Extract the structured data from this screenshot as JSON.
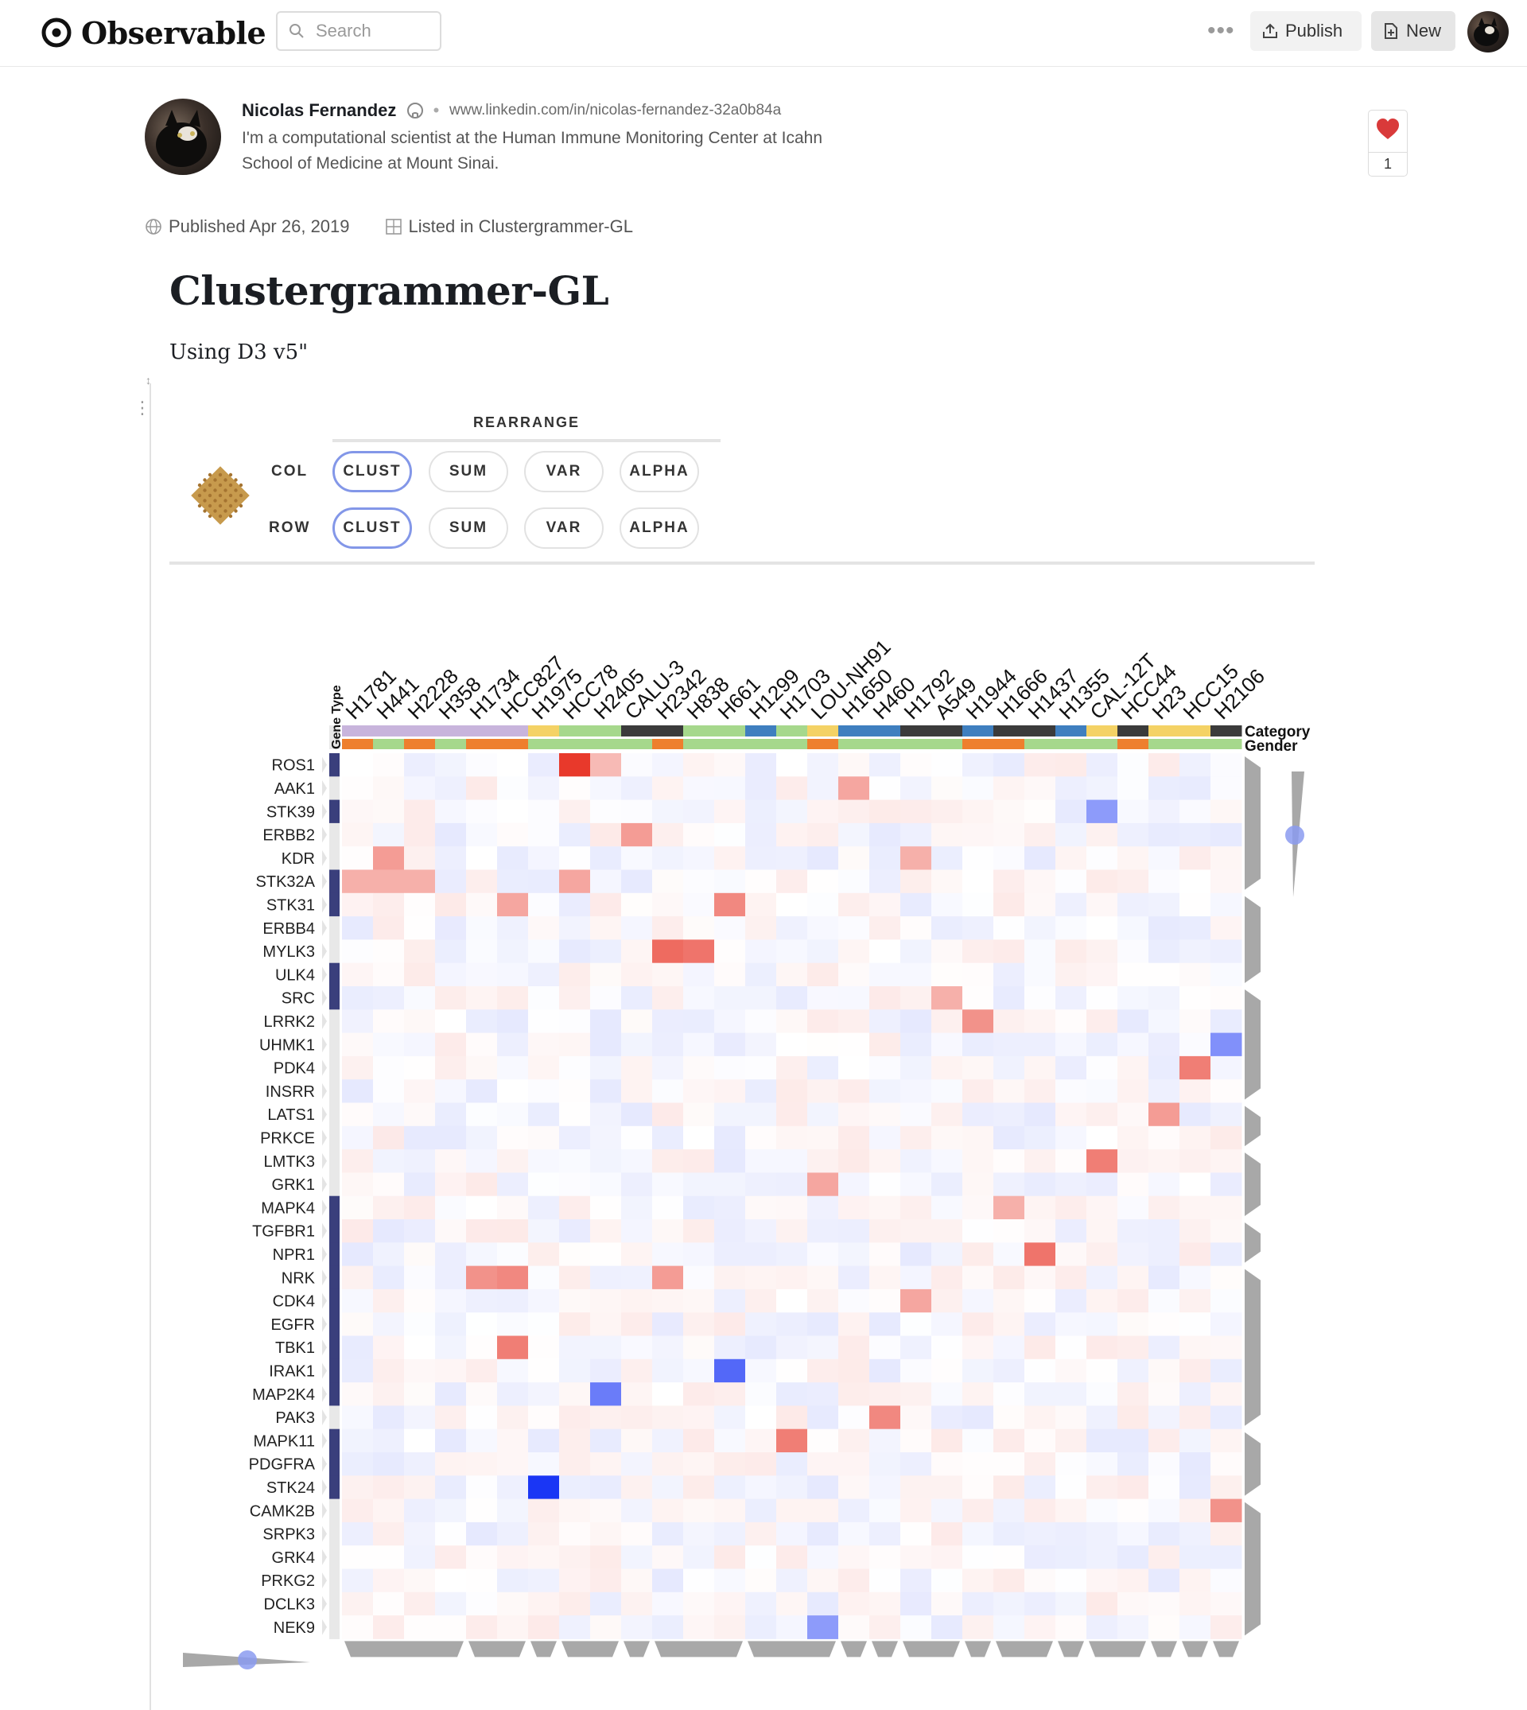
{
  "header": {
    "brand": "Observable",
    "search_placeholder": "Search",
    "more_label": "•••",
    "publish_label": "Publish",
    "new_label": "New"
  },
  "author": {
    "name": "Nicolas Fernandez",
    "link": "www.linkedin.com/in/nicolas-fernandez-32a0b84a",
    "bio": "I'm a computational scientist at the Human Immune Monitoring Center at Icahn School of Medicine at Mount Sinai."
  },
  "likes": {
    "count": "1"
  },
  "meta": {
    "published": "Published Apr 26, 2019",
    "listed": "Listed in Clustergrammer-GL"
  },
  "notebook": {
    "title": "Clustergrammer-GL",
    "subtitle": "Using D3 v5\""
  },
  "controls": {
    "heading": "REARRANGE",
    "col_label": "COL",
    "row_label": "ROW",
    "buttons": [
      "CLUST",
      "SUM",
      "VAR",
      "ALPHA"
    ],
    "active_col": "CLUST",
    "active_row": "CLUST"
  },
  "chart_data": {
    "type": "heatmap",
    "title": "",
    "columns": [
      "H1781",
      "H441",
      "H2228",
      "H358",
      "H1734",
      "HCC827",
      "H1975",
      "HCC78",
      "H2405",
      "CALU-3",
      "H2342",
      "H838",
      "H661",
      "H1299",
      "H1703",
      "LOU-NH91",
      "H1650",
      "H460",
      "H1792",
      "A549",
      "H1944",
      "H1666",
      "H1437",
      "H1355",
      "CAL-12T",
      "HCC44",
      "H23",
      "HCC15",
      "H2106"
    ],
    "rows": [
      "ROS1",
      "AAK1",
      "STK39",
      "ERBB2",
      "KDR",
      "STK32A",
      "STK31",
      "ERBB4",
      "MYLK3",
      "ULK4",
      "SRC",
      "LRRK2",
      "UHMK1",
      "PDK4",
      "INSRR",
      "LATS1",
      "PRKCE",
      "LMTK3",
      "GRK1",
      "MAPK4",
      "TGFBR1",
      "NPR1",
      "NRK",
      "CDK4",
      "EGFR",
      "TBK1",
      "IRAK1",
      "MAP2K4",
      "PAK3",
      "MAPK11",
      "PDGFRA",
      "STK24",
      "CAMK2B",
      "SRPK3",
      "GRK4",
      "PRKG2",
      "DCLK3",
      "NEK9"
    ],
    "row_category_label": "Gene Type",
    "col_category_labels": [
      "Category",
      "Gender"
    ],
    "row_category": [
      "a",
      "b",
      "a",
      "b",
      "b",
      "a",
      "a",
      "b",
      "b",
      "a",
      "a",
      "b",
      "b",
      "b",
      "b",
      "b",
      "b",
      "b",
      "b",
      "a",
      "a",
      "a",
      "a",
      "a",
      "a",
      "a",
      "a",
      "a",
      "b",
      "a",
      "a",
      "a",
      "b",
      "b",
      "b",
      "b",
      "b",
      "b"
    ],
    "col_category": [
      "lavender",
      "lavender",
      "lavender",
      "lavender",
      "lavender",
      "lavender",
      "yellow",
      "green",
      "green",
      "dark",
      "dark",
      "green",
      "green",
      "blue",
      "green",
      "yellow",
      "blue",
      "blue",
      "dark",
      "dark",
      "blue",
      "dark",
      "dark",
      "blue",
      "yellow",
      "dark",
      "yellow",
      "yellow",
      "dark"
    ],
    "col_gender": [
      "orange",
      "green",
      "orange",
      "green",
      "orange",
      "orange",
      "green",
      "green",
      "green",
      "green",
      "orange",
      "green",
      "green",
      "green",
      "green",
      "orange",
      "green",
      "green",
      "green",
      "green",
      "orange",
      "orange",
      "green",
      "green",
      "green",
      "orange",
      "green",
      "green",
      "green"
    ],
    "category_colors": {
      "lavender": "#c8b4dc",
      "yellow": "#f4d265",
      "green": "#a6d88c",
      "dark": "#3b3b3b",
      "blue": "#3f7fbf",
      "orange": "#ee7f2e",
      "a": "#3a3f7c",
      "b": "#e8e8e8"
    },
    "color_scale": {
      "positive": "#e8392b",
      "negative": "#1a36f5",
      "neutral": "#ffffff"
    },
    "highlights": [
      {
        "row": 0,
        "col": 7,
        "value": 1.0
      },
      {
        "row": 0,
        "col": 8,
        "value": 0.35
      },
      {
        "row": 1,
        "col": 16,
        "value": 0.45
      },
      {
        "row": 2,
        "col": 24,
        "value": -0.5
      },
      {
        "row": 3,
        "col": 9,
        "value": 0.5
      },
      {
        "row": 4,
        "col": 1,
        "value": 0.5
      },
      {
        "row": 4,
        "col": 18,
        "value": 0.4
      },
      {
        "row": 5,
        "col": 0,
        "value": 0.4
      },
      {
        "row": 5,
        "col": 1,
        "value": 0.4
      },
      {
        "row": 5,
        "col": 2,
        "value": 0.4
      },
      {
        "row": 5,
        "col": 7,
        "value": 0.45
      },
      {
        "row": 6,
        "col": 5,
        "value": 0.45
      },
      {
        "row": 6,
        "col": 12,
        "value": 0.6
      },
      {
        "row": 8,
        "col": 10,
        "value": 0.75
      },
      {
        "row": 8,
        "col": 11,
        "value": 0.7
      },
      {
        "row": 10,
        "col": 19,
        "value": 0.4
      },
      {
        "row": 11,
        "col": 20,
        "value": 0.55
      },
      {
        "row": 12,
        "col": 28,
        "value": -0.55
      },
      {
        "row": 13,
        "col": 27,
        "value": 0.65
      },
      {
        "row": 15,
        "col": 26,
        "value": 0.5
      },
      {
        "row": 17,
        "col": 24,
        "value": 0.65
      },
      {
        "row": 18,
        "col": 15,
        "value": 0.45
      },
      {
        "row": 19,
        "col": 21,
        "value": 0.4
      },
      {
        "row": 21,
        "col": 22,
        "value": 0.7
      },
      {
        "row": 22,
        "col": 4,
        "value": 0.55
      },
      {
        "row": 22,
        "col": 5,
        "value": 0.6
      },
      {
        "row": 22,
        "col": 10,
        "value": 0.5
      },
      {
        "row": 23,
        "col": 18,
        "value": 0.45
      },
      {
        "row": 25,
        "col": 5,
        "value": 0.65
      },
      {
        "row": 26,
        "col": 12,
        "value": -0.75
      },
      {
        "row": 27,
        "col": 8,
        "value": -0.65
      },
      {
        "row": 28,
        "col": 17,
        "value": 0.6
      },
      {
        "row": 29,
        "col": 14,
        "value": 0.65
      },
      {
        "row": 31,
        "col": 6,
        "value": -1.0
      },
      {
        "row": 32,
        "col": 28,
        "value": 0.55
      },
      {
        "row": 37,
        "col": 15,
        "value": -0.5
      }
    ]
  }
}
